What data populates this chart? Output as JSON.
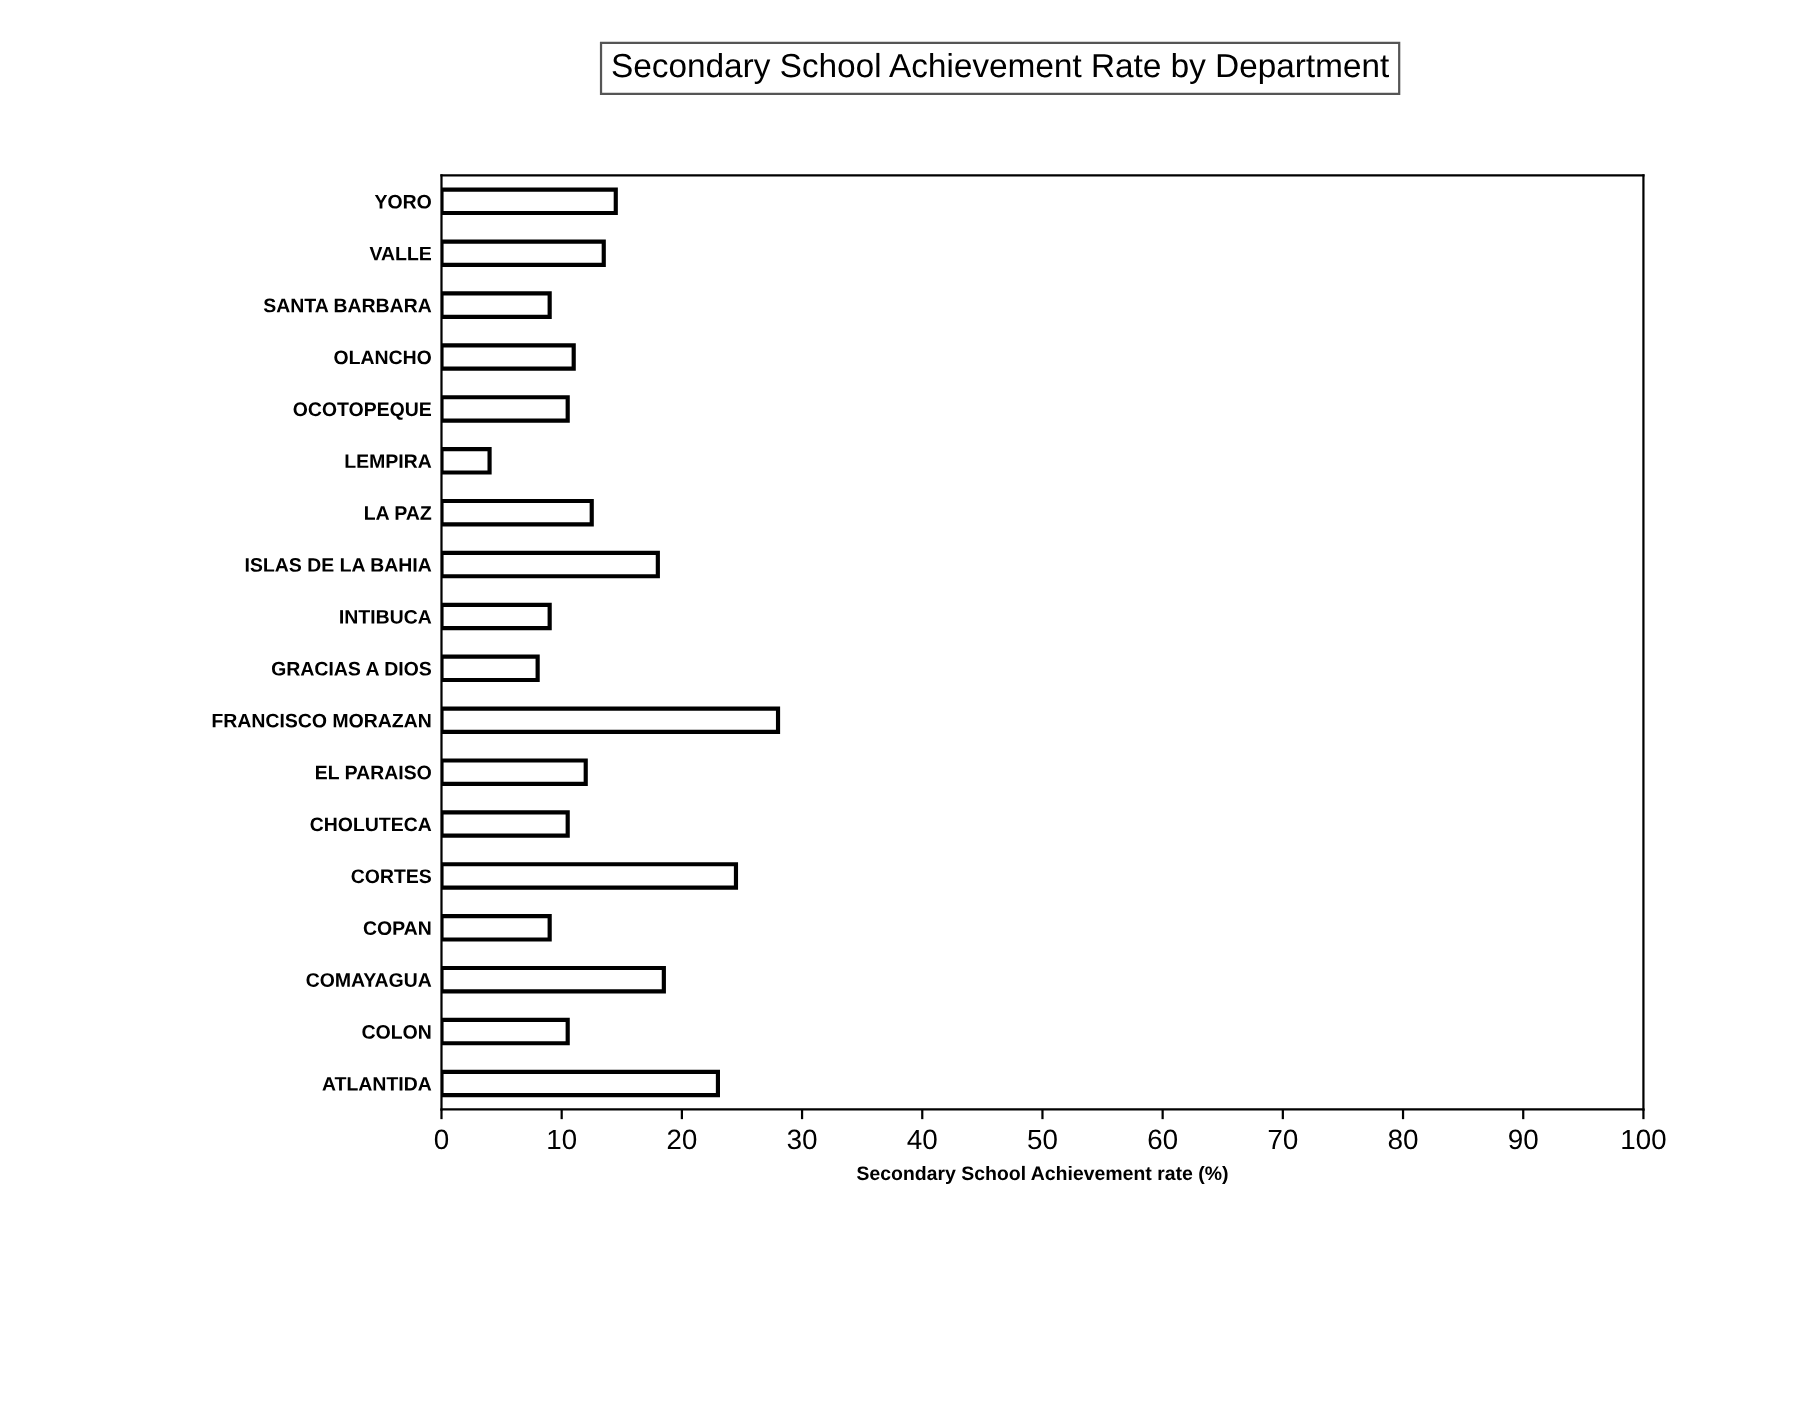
{
  "chart_data": {
    "type": "bar",
    "orientation": "horizontal",
    "title": "Secondary School Achievement Rate by Department",
    "xlabel": "Secondary School Achievement rate (%)",
    "categories": [
      "YORO",
      "VALLE",
      "SANTA BARBARA",
      "OLANCHO",
      "OCOTOPEQUE",
      "LEMPIRA",
      "LA PAZ",
      "ISLAS DE LA BAHIA",
      "INTIBUCA",
      "GRACIAS A DIOS",
      "FRANCISCO MORAZAN",
      "EL PARAISO",
      "CHOLUTECA",
      "CORTES",
      "COPAN",
      "COMAYAGUA",
      "COLON",
      "ATLANTIDA"
    ],
    "values": [
      14.5,
      13.5,
      9,
      11,
      10.5,
      4,
      12.5,
      18,
      9,
      8,
      28,
      12,
      10.5,
      24.5,
      9,
      18.5,
      10.5,
      23
    ],
    "color": "#ffffff",
    "xlim": [
      0,
      100
    ],
    "xticks": [
      0,
      10,
      20,
      30,
      40,
      50,
      60,
      70,
      80,
      90,
      100
    ],
    "grid": false,
    "legend": false
  }
}
